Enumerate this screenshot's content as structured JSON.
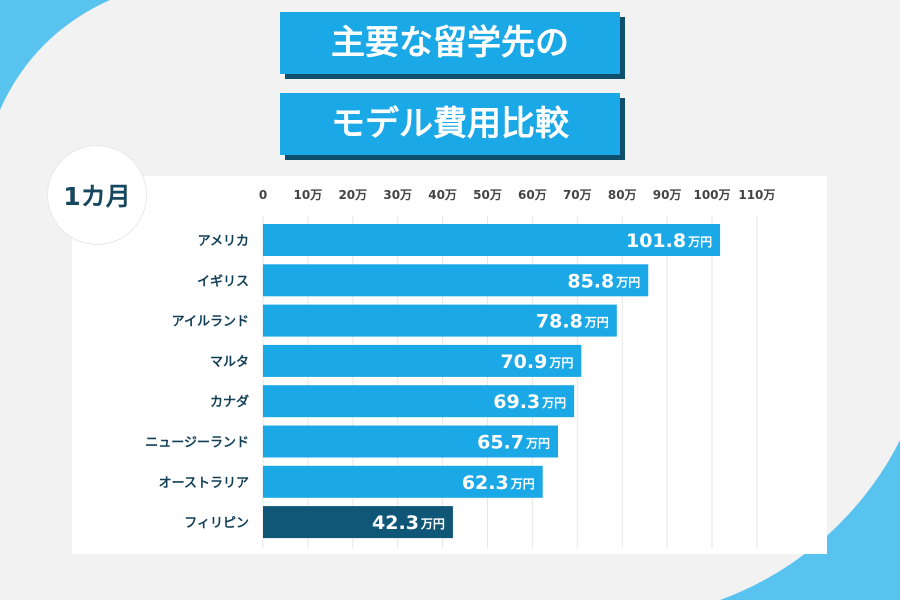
{
  "title_line1": "主要な留学先の",
  "title_line2": "モデル費用比較",
  "period_badge": "1カ月",
  "colors": {
    "bar": "#1ba8e6",
    "highlight": "#0f5677",
    "title_bg": "#1ba8e6",
    "title_shadow": "#0e4f6e",
    "deco": "#59c3ef"
  },
  "chart_data": {
    "type": "bar",
    "orientation": "horizontal",
    "title": "",
    "xlabel": "",
    "ylabel": "",
    "unit": "万円",
    "xlim": [
      0,
      110
    ],
    "x_ticks": [
      0,
      10,
      20,
      30,
      40,
      50,
      60,
      70,
      80,
      90,
      100,
      110
    ],
    "x_tick_labels": [
      "0",
      "10万",
      "20万",
      "30万",
      "40万",
      "50万",
      "60万",
      "70万",
      "80万",
      "90万",
      "100万",
      "110万"
    ],
    "grid": true,
    "categories": [
      "アメリカ",
      "イギリス",
      "アイルランド",
      "マルタ",
      "カナダ",
      "ニュージーランド",
      "オーストラリア",
      "フィリピン"
    ],
    "values": [
      101.8,
      85.8,
      78.8,
      70.9,
      69.3,
      65.7,
      62.3,
      42.3
    ],
    "value_labels": [
      "101.8",
      "85.8",
      "78.8",
      "70.9",
      "69.3",
      "65.7",
      "62.3",
      "42.3"
    ],
    "highlight_category": "フィリピン"
  }
}
